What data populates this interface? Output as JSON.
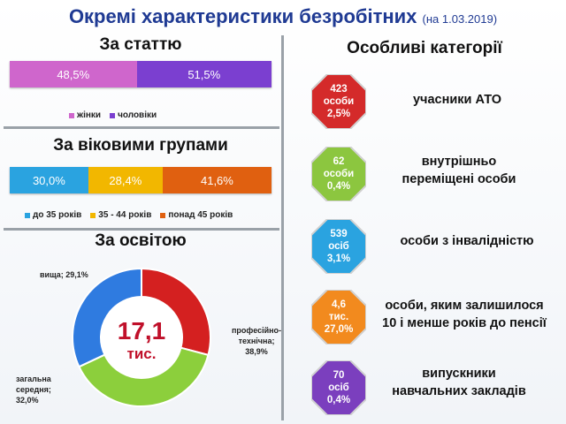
{
  "title": "Окремі характеристики безробітних",
  "date": "(на 1.03.2019)",
  "gender": {
    "title": "За статтю",
    "segments": [
      {
        "label": "48,5%",
        "value": 48.5,
        "color": "#cf66cc"
      },
      {
        "label": "51,5%",
        "value": 51.5,
        "color": "#7b3fd0"
      }
    ],
    "legend": [
      {
        "label": "жінки",
        "color": "#cf66cc"
      },
      {
        "label": "чоловіки",
        "color": "#7b3fd0"
      }
    ]
  },
  "age": {
    "title": "За віковими групами",
    "segments": [
      {
        "label": "30,0%",
        "value": 30.0,
        "color": "#2aa3e0"
      },
      {
        "label": "28,4%",
        "value": 28.4,
        "color": "#f2b700"
      },
      {
        "label": "41,6%",
        "value": 41.6,
        "color": "#e06010"
      }
    ],
    "legend": [
      {
        "label": "до 35 років",
        "color": "#2aa3e0"
      },
      {
        "label": "35 - 44 років",
        "color": "#f2b700"
      },
      {
        "label": "понад 45 років",
        "color": "#e06010"
      }
    ]
  },
  "education": {
    "title": "За освітою",
    "center_value": "17,1",
    "center_unit": "тис.",
    "labels": {
      "higher": "вища; 29,1%",
      "vocational": [
        "професійно-",
        "технічна;",
        "38,9%"
      ],
      "general": [
        "загальна",
        "середня;",
        "32,0%"
      ]
    }
  },
  "chart_data": [
    {
      "type": "bar",
      "title": "За статтю",
      "categories": [
        "жінки",
        "чоловіки"
      ],
      "values": [
        48.5,
        51.5
      ],
      "unit": "%"
    },
    {
      "type": "bar",
      "title": "За віковими групами",
      "categories": [
        "до 35 років",
        "35 - 44 років",
        "понад 45 років"
      ],
      "values": [
        30.0,
        28.4,
        41.6
      ],
      "unit": "%"
    },
    {
      "type": "pie",
      "title": "За освітою",
      "categories": [
        "вища",
        "професійно-технічна",
        "загальна середня"
      ],
      "values": [
        29.1,
        38.9,
        32.0
      ],
      "colors": [
        "#d42020",
        "#8ccf3c",
        "#2f7be0"
      ],
      "unit": "%"
    }
  ],
  "categories": {
    "title": "Особливі категорії",
    "items": [
      {
        "lines": [
          "423",
          "особи",
          "2,5%"
        ],
        "color": "#d42a2a",
        "label": [
          "учасники АТО"
        ]
      },
      {
        "lines": [
          "62",
          "особи",
          "0,4%"
        ],
        "color": "#8cc63f",
        "label": [
          "внутрішньо",
          "переміщені особи"
        ]
      },
      {
        "lines": [
          "539",
          "осіб",
          "3,1%"
        ],
        "color": "#2aa3e0",
        "label": [
          "особи з інвалідністю"
        ]
      },
      {
        "lines": [
          "4,6",
          "тис.",
          "27,0%"
        ],
        "color": "#f28a1e",
        "label": [
          "особи, яким залишилося",
          "10 і менше років до пенсії"
        ]
      },
      {
        "lines": [
          "70",
          "осіб",
          "0,4%"
        ],
        "color": "#7b3fbe",
        "label": [
          "випускники",
          "навчальних закладів"
        ]
      }
    ]
  }
}
